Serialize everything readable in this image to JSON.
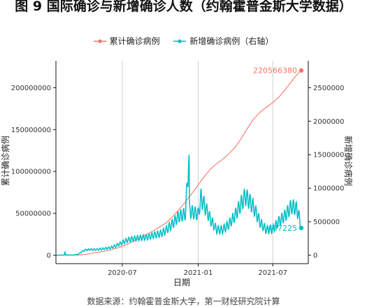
{
  "figure": {
    "title": "图 9 国际确诊与新增确诊人数（约翰霍普金斯大学数据）",
    "source_note": "数据来源：约翰霍普金斯大学，第一财经研究院计算"
  },
  "legend": [
    {
      "label": "累计确诊病例",
      "color": "#F8766D"
    },
    {
      "label": "新增确诊病例（右轴）",
      "color": "#00BFC4"
    }
  ],
  "chart_data": {
    "type": "line",
    "title": "",
    "xlabel": "日期",
    "ylabel": "累计确诊病例",
    "y2label": "新增确诊病例",
    "x_range": [
      "2020-01-22",
      "2021-09-25"
    ],
    "x_ticks": [
      "2020-07",
      "2021-01",
      "2021-07"
    ],
    "ylim": [
      -10000000,
      232000000
    ],
    "y_ticks": [
      0,
      50000000,
      100000000,
      150000000,
      200000000
    ],
    "y_tick_labels": [
      "0",
      "50000000",
      "100000000",
      "150000000",
      "200000000"
    ],
    "y2lim": [
      -125000,
      2900000
    ],
    "y2_ticks": [
      0,
      500000,
      1000000,
      1500000,
      2000000,
      2500000
    ],
    "y2_tick_labels": [
      "0",
      "500000",
      "1000000",
      "1500000",
      "2000000",
      "2500000"
    ],
    "grid": "vertical major lines only",
    "legend_position": "top",
    "series": [
      {
        "name": "累计确诊病例",
        "axis": "left",
        "color": "#F8766D",
        "points": [
          [
            "2020-01-22",
            600
          ],
          [
            "2020-02-15",
            70000
          ],
          [
            "2020-03-01",
            90000
          ],
          [
            "2020-03-15",
            180000
          ],
          [
            "2020-04-01",
            950000
          ],
          [
            "2020-04-15",
            2100000
          ],
          [
            "2020-05-01",
            3400000
          ],
          [
            "2020-05-15",
            4500000
          ],
          [
            "2020-06-01",
            6300000
          ],
          [
            "2020-06-15",
            8000000
          ],
          [
            "2020-07-01",
            10600000
          ],
          [
            "2020-07-15",
            13500000
          ],
          [
            "2020-08-01",
            17700000
          ],
          [
            "2020-08-15",
            21300000
          ],
          [
            "2020-09-01",
            25600000
          ],
          [
            "2020-09-15",
            29500000
          ],
          [
            "2020-10-01",
            34200000
          ],
          [
            "2020-10-15",
            38600000
          ],
          [
            "2020-11-01",
            46500000
          ],
          [
            "2020-11-15",
            54300000
          ],
          [
            "2020-12-01",
            63400000
          ],
          [
            "2020-12-15",
            72700000
          ],
          [
            "2021-01-01",
            83800000
          ],
          [
            "2021-01-15",
            93600000
          ],
          [
            "2021-02-01",
            103400000
          ],
          [
            "2021-02-15",
            109300000
          ],
          [
            "2021-03-01",
            114400000
          ],
          [
            "2021-03-15",
            120400000
          ],
          [
            "2021-04-01",
            129300000
          ],
          [
            "2021-04-15",
            139000000
          ],
          [
            "2021-05-01",
            151800000
          ],
          [
            "2021-05-15",
            162400000
          ],
          [
            "2021-06-01",
            171200000
          ],
          [
            "2021-06-15",
            176500000
          ],
          [
            "2021-07-01",
            182300000
          ],
          [
            "2021-07-15",
            188400000
          ],
          [
            "2021-08-01",
            198300000
          ],
          [
            "2021-08-15",
            207300000
          ],
          [
            "2021-09-01",
            217600000
          ],
          [
            "2021-09-08",
            220566380
          ]
        ],
        "end_label": "220566380"
      },
      {
        "name": "新增确诊病例（右轴）",
        "axis": "right",
        "color": "#00BFC4",
        "points": [
          [
            "2020-01-22",
            100
          ],
          [
            "2020-02-10",
            3000
          ],
          [
            "2020-02-12",
            15000
          ],
          [
            "2020-02-13",
            58000
          ],
          [
            "2020-02-14",
            8000
          ],
          [
            "2020-03-01",
            3000
          ],
          [
            "2020-03-15",
            15000
          ],
          [
            "2020-04-01",
            78000
          ],
          [
            "2020-04-15",
            85000
          ],
          [
            "2020-05-01",
            86000
          ],
          [
            "2020-05-15",
            96000
          ],
          [
            "2020-06-01",
            110000
          ],
          [
            "2020-06-15",
            140000
          ],
          [
            "2020-07-01",
            190000
          ],
          [
            "2020-07-15",
            230000
          ],
          [
            "2020-08-01",
            250000
          ],
          [
            "2020-08-15",
            260000
          ],
          [
            "2020-09-01",
            270000
          ],
          [
            "2020-09-15",
            300000
          ],
          [
            "2020-10-01",
            320000
          ],
          [
            "2020-10-15",
            370000
          ],
          [
            "2020-11-01",
            480000
          ],
          [
            "2020-11-15",
            580000
          ],
          [
            "2020-12-01",
            620000
          ],
          [
            "2020-12-10",
            1500000
          ],
          [
            "2020-12-11",
            680000
          ],
          [
            "2020-12-15",
            650000
          ],
          [
            "2021-01-01",
            610000
          ],
          [
            "2021-01-08",
            860000
          ],
          [
            "2021-01-15",
            760000
          ],
          [
            "2021-02-01",
            520000
          ],
          [
            "2021-02-15",
            380000
          ],
          [
            "2021-03-01",
            380000
          ],
          [
            "2021-03-15",
            450000
          ],
          [
            "2021-04-01",
            600000
          ],
          [
            "2021-04-15",
            770000
          ],
          [
            "2021-04-25",
            880000
          ],
          [
            "2021-05-01",
            840000
          ],
          [
            "2021-05-15",
            720000
          ],
          [
            "2021-06-01",
            480000
          ],
          [
            "2021-06-15",
            380000
          ],
          [
            "2021-07-01",
            390000
          ],
          [
            "2021-07-15",
            500000
          ],
          [
            "2021-08-01",
            600000
          ],
          [
            "2021-08-15",
            730000
          ],
          [
            "2021-08-25",
            710000
          ],
          [
            "2021-09-01",
            630000
          ],
          [
            "2021-09-08",
            407225
          ]
        ],
        "end_label": "407225"
      }
    ]
  }
}
